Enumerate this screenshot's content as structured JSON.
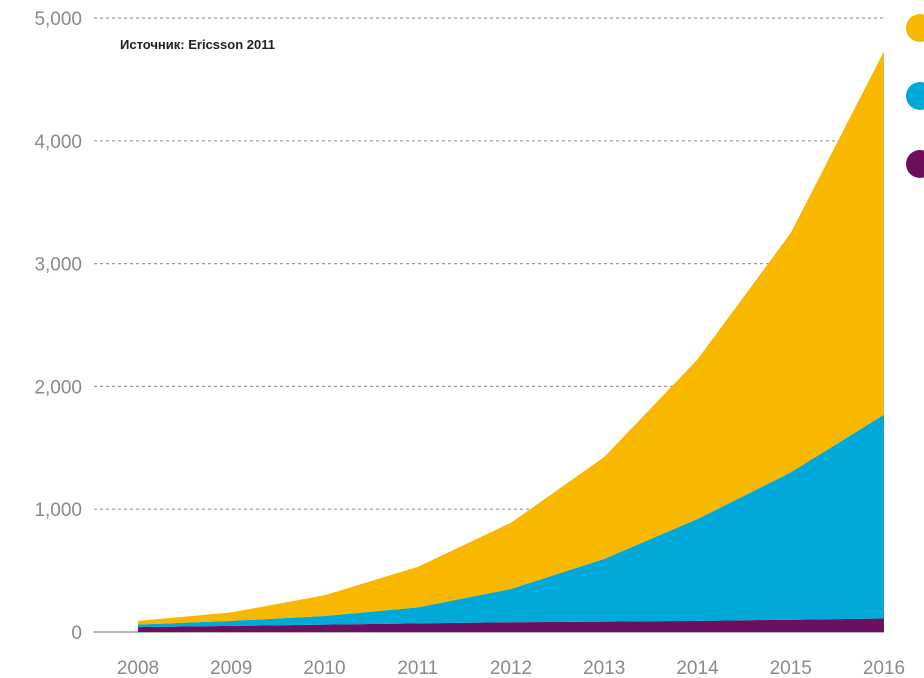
{
  "chart_data": {
    "type": "area",
    "stacked": true,
    "annotation": "Источник: Ericsson 2011",
    "x": [
      2008,
      2009,
      2010,
      2011,
      2012,
      2013,
      2014,
      2015,
      2016
    ],
    "x_tick_labels": [
      "2008",
      "2009",
      "2010",
      "2011",
      "2012",
      "2013",
      "2014",
      "2015",
      "2016"
    ],
    "y_tick_labels": [
      "0",
      "1,000",
      "2,000",
      "3,000",
      "4,000",
      "5,000"
    ],
    "ylim": [
      0,
      5000
    ],
    "grid": "horizontal dotted",
    "legend_position": "top-right",
    "series": [
      {
        "color": "#6b0f5e",
        "values": [
          40,
          50,
          60,
          70,
          80,
          85,
          90,
          100,
          110
        ]
      },
      {
        "color": "#00a9d8",
        "values": [
          20,
          40,
          70,
          130,
          270,
          510,
          830,
          1200,
          1660
        ]
      },
      {
        "color": "#f8b800",
        "values": [
          30,
          70,
          170,
          330,
          540,
          830,
          1300,
          1950,
          2960
        ]
      }
    ]
  }
}
